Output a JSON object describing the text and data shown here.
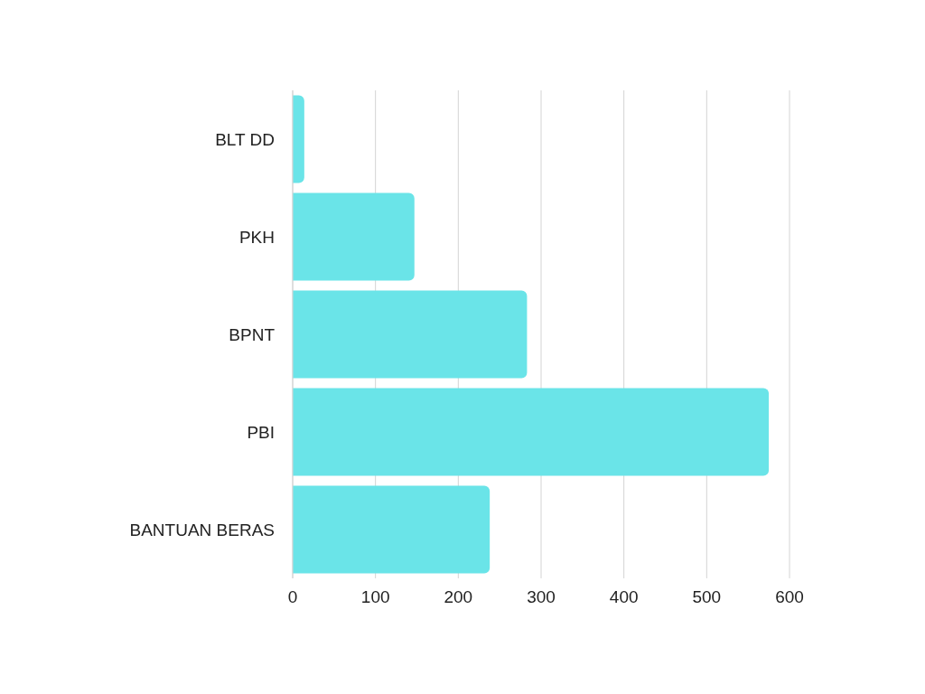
{
  "chart_data": {
    "type": "bar",
    "orientation": "horizontal",
    "categories": [
      "BLT DD",
      "PKH",
      "BPNT",
      "PBI",
      "BANTUAN BERAS"
    ],
    "values": [
      14,
      147,
      283,
      575,
      238
    ],
    "color": "#6ae4e8",
    "xlim": [
      0,
      600
    ],
    "xticks": [
      0,
      100,
      200,
      300,
      400,
      500,
      600
    ],
    "grid": "x"
  }
}
